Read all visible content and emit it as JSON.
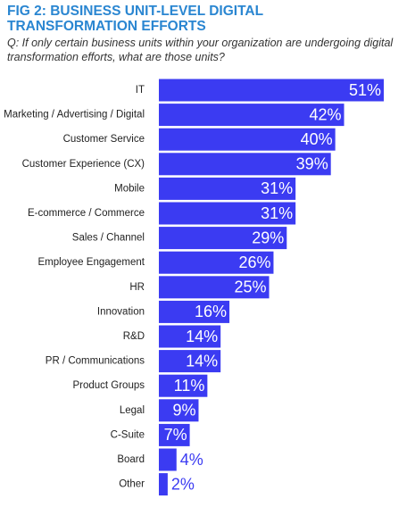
{
  "chart_data": {
    "type": "bar",
    "orientation": "horizontal",
    "title": "FIG 2: BUSINESS UNIT-LEVEL DIGITAL TRANSFORMATION EFFORTS",
    "subtitle": "Q: If only certain business units within your organization are undergoing digital transformation efforts, what are those units?",
    "categories": [
      "IT",
      "Marketing / Advertising / Digital",
      "Customer Service",
      "Customer Experience (CX)",
      "Mobile",
      "E-commerce / Commerce",
      "Sales / Channel",
      "Employee Engagement",
      "HR",
      "Innovation",
      "R&D",
      "PR / Communications",
      "Product Groups",
      "Legal",
      "C-Suite",
      "Board",
      "Other"
    ],
    "values": [
      51,
      42,
      40,
      39,
      31,
      31,
      29,
      26,
      25,
      16,
      14,
      14,
      11,
      9,
      7,
      4,
      2
    ],
    "value_labels": [
      "51%",
      "42%",
      "40%",
      "39%",
      "31%",
      "31%",
      "29%",
      "26%",
      "25%",
      "16%",
      "14%",
      "14%",
      "11%",
      "9%",
      "7%",
      "4%",
      "2%"
    ],
    "color": "#3b3bf2"
  }
}
